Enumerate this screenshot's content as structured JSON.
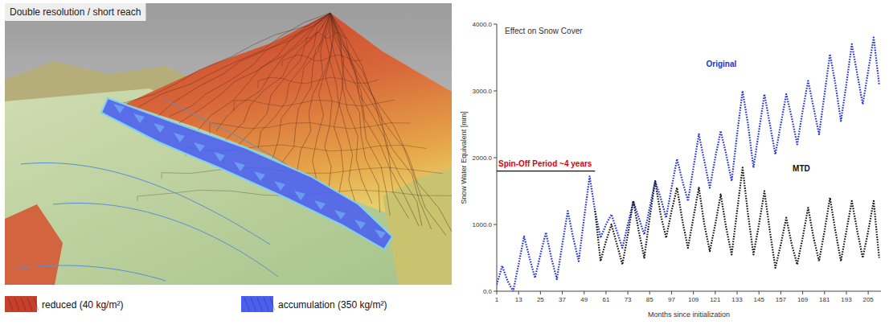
{
  "image_panel": {
    "title": "Double resolution / short reach",
    "legend": [
      {
        "label": "reduced (40 kg/m²)",
        "color": "#c8402a"
      },
      {
        "label": "accumulation (350 kg/m²)",
        "color": "#4a5ef0"
      }
    ]
  },
  "chart_data": {
    "type": "line",
    "title": "Effect on Snow Cover",
    "x_label": "Months since initialization",
    "y_label": "Snow Water Equivalent [mm]",
    "x": [
      1,
      4,
      7,
      10,
      13,
      16,
      19,
      22,
      25,
      28,
      31,
      34,
      37,
      40,
      43,
      46,
      49,
      52,
      55,
      58,
      61,
      64,
      67,
      70,
      73,
      76,
      79,
      82,
      85,
      88,
      91,
      94,
      97,
      100,
      103,
      106,
      109,
      112,
      115,
      118,
      121,
      124,
      127,
      130,
      133,
      136,
      139,
      142,
      145,
      148,
      151,
      154,
      157,
      160,
      163,
      166,
      169,
      172,
      175,
      178,
      181,
      184,
      187,
      190,
      193,
      196,
      199,
      202,
      205,
      208,
      211
    ],
    "series": [
      {
        "name": "Original",
        "color": "#2030e0",
        "line_style": "dotted",
        "values": [
          100,
          380,
          150,
          0,
          400,
          820,
          500,
          200,
          550,
          880,
          500,
          180,
          700,
          1200,
          800,
          450,
          1100,
          1720,
          1200,
          800,
          1000,
          1150,
          900,
          650,
          1000,
          1350,
          1100,
          850,
          1250,
          1650,
          1400,
          1100,
          1550,
          1980,
          1650,
          1350,
          1850,
          2350,
          1950,
          1550,
          2000,
          2400,
          2050,
          1650,
          2350,
          3000,
          2500,
          1850,
          2400,
          2950,
          2500,
          2050,
          2500,
          2950,
          2600,
          2200,
          2700,
          3150,
          2750,
          2350,
          2950,
          3550,
          3100,
          2550,
          3100,
          3700,
          3250,
          2800,
          3300,
          3800,
          3100
        ]
      },
      {
        "name": "MTD",
        "color": "#111111",
        "line_style": "dotted",
        "values": [
          null,
          null,
          null,
          null,
          null,
          null,
          null,
          null,
          null,
          null,
          null,
          null,
          null,
          null,
          null,
          null,
          null,
          null,
          1200,
          450,
          750,
          1000,
          700,
          400,
          850,
          1350,
          900,
          500,
          1100,
          1650,
          1150,
          800,
          1200,
          1550,
          1050,
          650,
          1100,
          1550,
          1000,
          600,
          1000,
          1450,
          950,
          550,
          1200,
          1850,
          1150,
          550,
          1000,
          1500,
          900,
          350,
          700,
          1100,
          700,
          400,
          800,
          1250,
          800,
          450,
          900,
          1400,
          900,
          450,
          900,
          1350,
          900,
          500,
          900,
          1350,
          500
        ]
      }
    ],
    "xlim": [
      1,
      212
    ],
    "xticks": [
      1,
      13,
      25,
      37,
      49,
      61,
      73,
      85,
      97,
      109,
      121,
      133,
      145,
      157,
      169,
      181,
      193,
      205
    ],
    "ylim": [
      0,
      4000
    ],
    "yticks": [
      {
        "value": 0,
        "label": "0.0"
      },
      {
        "value": 1000,
        "label": "1000.0"
      },
      {
        "value": 2000,
        "label": "2000.0"
      },
      {
        "value": 3000,
        "label": "3000.0"
      },
      {
        "value": 4000,
        "label": "4000.0"
      }
    ],
    "grid": false,
    "annotations": [
      {
        "text": "Spin-Off Period ~4 years",
        "x_start": 1,
        "x_end": 55,
        "y": 1800,
        "color": "#e00000"
      }
    ]
  }
}
